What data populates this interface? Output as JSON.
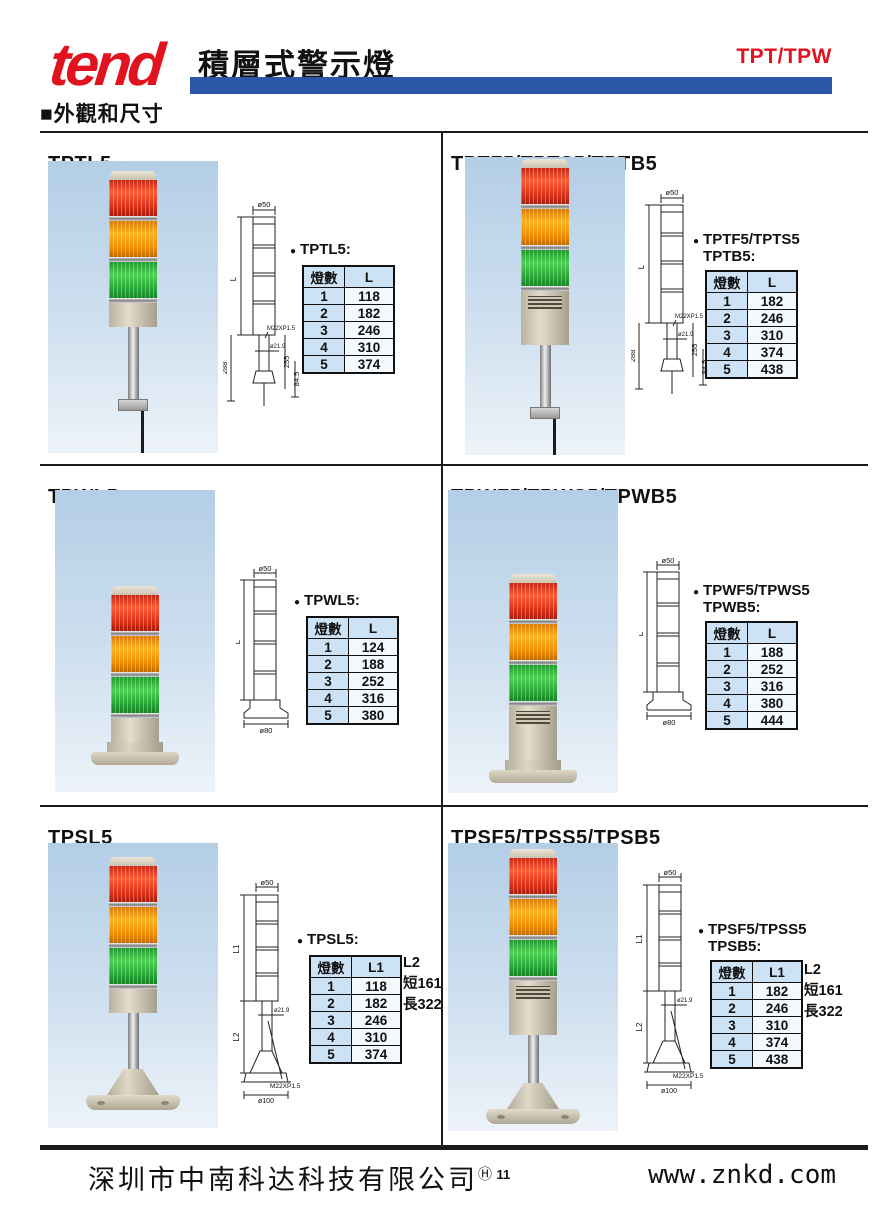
{
  "header": {
    "logo": "tend",
    "title": "積層式警示燈",
    "series": "TPT/TPW"
  },
  "section_title": "■外觀和尺寸",
  "footer": {
    "company": "深圳市中南科达科技有限公司",
    "mark": "Ⓗ",
    "page": "11",
    "website": "www.znkd.com"
  },
  "colors": {
    "accent_red": "#e0131e",
    "accent_blue": "#2b57a8",
    "table_header_blue": "#cde2f4",
    "photo_sky_blue": "#b3cee6"
  },
  "panels": [
    {
      "title": "TPTL5",
      "variant": "T",
      "bullet": "●",
      "label1": "TPTL5:",
      "label2": "",
      "columns": [
        "燈數",
        "L"
      ],
      "rows": [
        [
          "1",
          "118"
        ],
        [
          "2",
          "182"
        ],
        [
          "3",
          "246"
        ],
        [
          "4",
          "310"
        ],
        [
          "5",
          "374"
        ]
      ],
      "dims": {
        "top": "ø50",
        "len": "L",
        "thread": "M22XP1.5",
        "neck": "ø21.9",
        "h_left": "288",
        "h_right": "255",
        "h_inner": "84.5"
      }
    },
    {
      "title": "TPTF5/TPTS5/TPTB5",
      "variant": "TB",
      "bullet": "●",
      "label1": "TPTF5/TPTS5",
      "label2": "TPTB5:",
      "columns": [
        "燈數",
        "L"
      ],
      "rows": [
        [
          "1",
          "182"
        ],
        [
          "2",
          "246"
        ],
        [
          "3",
          "310"
        ],
        [
          "4",
          "374"
        ],
        [
          "5",
          "438"
        ]
      ],
      "dims": {
        "top": "ø50",
        "len": "L",
        "thread": "M22XP1.5",
        "neck": "ø21.9",
        "h_left": "288",
        "h_right": "255",
        "h_inner": "84.5"
      }
    },
    {
      "title": "TPWL5",
      "variant": "W",
      "bullet": "●",
      "label1": "TPWL5:",
      "label2": "",
      "columns": [
        "燈數",
        "L"
      ],
      "rows": [
        [
          "1",
          "124"
        ],
        [
          "2",
          "188"
        ],
        [
          "3",
          "252"
        ],
        [
          "4",
          "316"
        ],
        [
          "5",
          "380"
        ]
      ],
      "dims": {
        "top": "ø50",
        "len": "L",
        "base": "ø80"
      }
    },
    {
      "title": "TPWF5/TPWS5/TPWB5",
      "variant": "WB",
      "bullet": "●",
      "label1": "TPWF5/TPWS5",
      "label2": "TPWB5:",
      "columns": [
        "燈數",
        "L"
      ],
      "rows": [
        [
          "1",
          "188"
        ],
        [
          "2",
          "252"
        ],
        [
          "3",
          "316"
        ],
        [
          "4",
          "380"
        ],
        [
          "5",
          "444"
        ]
      ],
      "dims": {
        "top": "ø50",
        "len": "L",
        "base": "ø80"
      }
    },
    {
      "title": "TPSL5",
      "variant": "S",
      "bullet": "●",
      "label1": "TPSL5:",
      "label2": "",
      "columns": [
        "燈數",
        "L1"
      ],
      "rows": [
        [
          "1",
          "118"
        ],
        [
          "2",
          "182"
        ],
        [
          "3",
          "246"
        ],
        [
          "4",
          "310"
        ],
        [
          "5",
          "374"
        ]
      ],
      "l2": [
        "L2",
        "短161",
        "長322"
      ],
      "dims": {
        "top": "ø50",
        "len1": "L1",
        "len2": "L2",
        "neck": "ø21.9",
        "thread": "M22XP1.5",
        "base": "ø100"
      }
    },
    {
      "title": "TPSF5/TPSS5/TPSB5",
      "variant": "SB",
      "bullet": "●",
      "label1": "TPSF5/TPSS5",
      "label2": "TPSB5:",
      "columns": [
        "燈數",
        "L1"
      ],
      "rows": [
        [
          "1",
          "182"
        ],
        [
          "2",
          "246"
        ],
        [
          "3",
          "310"
        ],
        [
          "4",
          "374"
        ],
        [
          "5",
          "438"
        ]
      ],
      "l2": [
        "L2",
        "短161",
        "長322"
      ],
      "dims": {
        "top": "ø50",
        "len1": "L1",
        "len2": "L2",
        "neck": "ø21.9",
        "thread": "M22XP1.5",
        "base": "ø100"
      }
    }
  ]
}
